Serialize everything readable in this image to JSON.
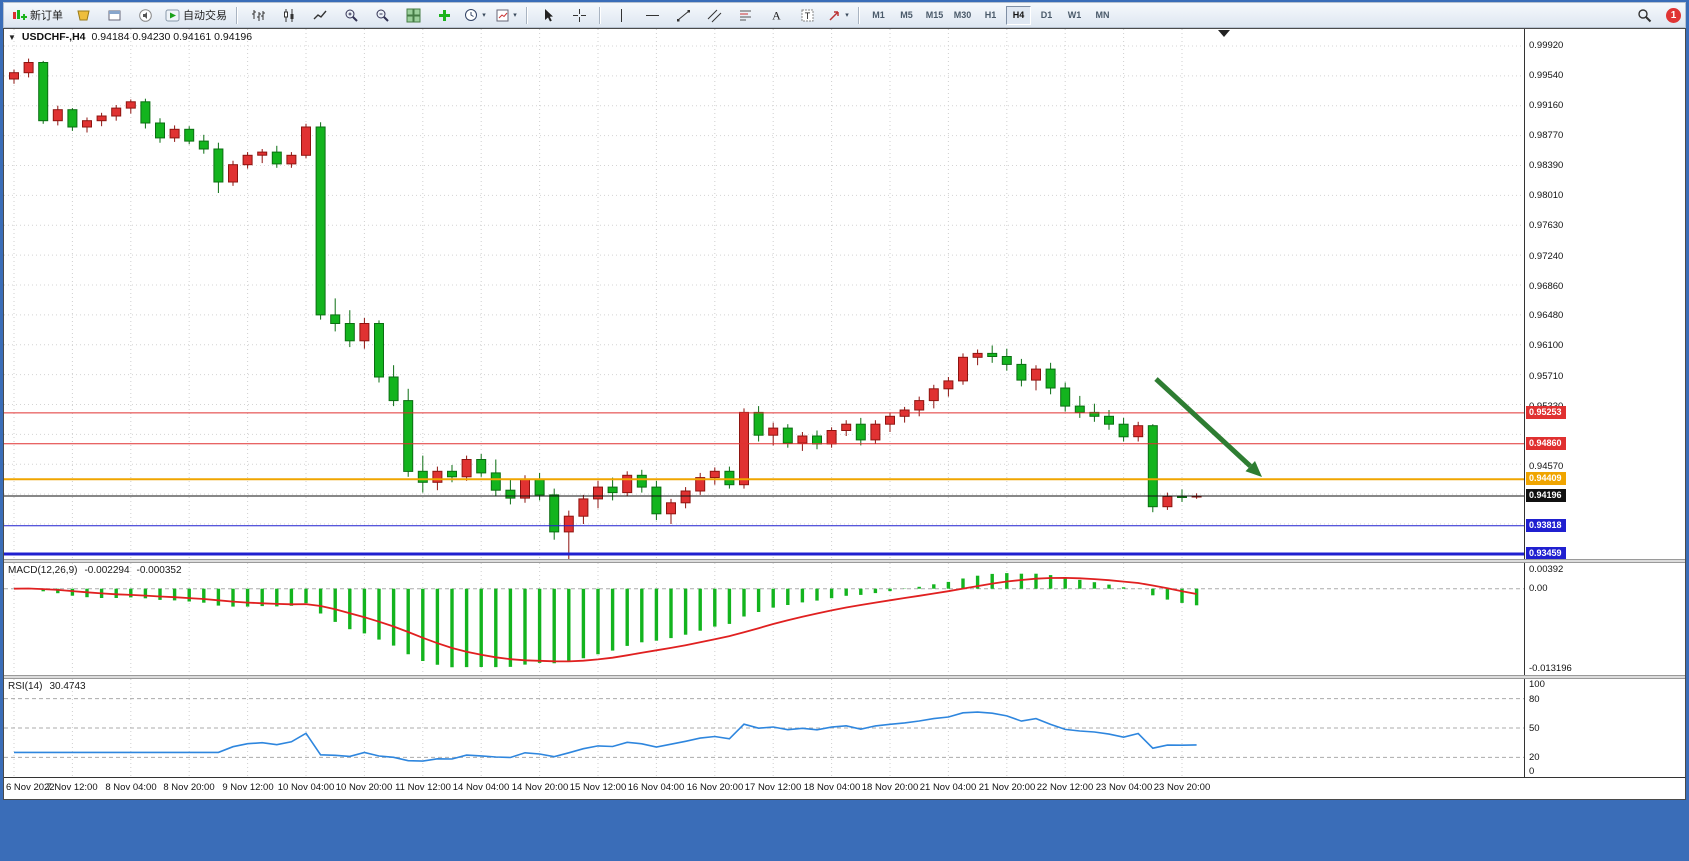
{
  "window": {
    "badge_count": "1",
    "frame_color": "#3a6db8"
  },
  "icons": {
    "caret": "▾",
    "collapse": "▼"
  },
  "toolbar": {
    "new_order_label": "新订单",
    "autotrading_label": "自动交易",
    "timeframes": [
      "M1",
      "M5",
      "M15",
      "M30",
      "H1",
      "H4",
      "D1",
      "W1",
      "MN"
    ],
    "active_timeframe": "H4"
  },
  "chart": {
    "symbol_label": "USDCHF-,H4",
    "ohlc_text": "0.94184 0.94230 0.94161 0.94196",
    "price_axis_labels": [
      "0.99920",
      "0.99540",
      "0.99160",
      "0.98770",
      "0.98390",
      "0.98010",
      "0.97630",
      "0.97240",
      "0.96860",
      "0.96480",
      "0.96100",
      "0.95710",
      "0.95330",
      "0.94570"
    ],
    "hlines": [
      {
        "price": 0.95253,
        "label": "0.95253",
        "color": "#e03030",
        "width": 1
      },
      {
        "price": 0.9486,
        "label": "0.94860",
        "color": "#e03030",
        "width": 1
      },
      {
        "price": 0.94409,
        "label": "0.94409",
        "color": "#f0a500",
        "width": 2
      },
      {
        "price": 0.94196,
        "label": "0.94196",
        "color": "#111111",
        "width": 1
      },
      {
        "price": 0.93818,
        "label": "0.93818",
        "color": "#2020d0",
        "width": 1
      },
      {
        "price": 0.93459,
        "label": "0.93459",
        "color": "#2020d0",
        "width": 3
      }
    ],
    "arrow": {
      "color": "#2e7d32"
    },
    "time_labels": [
      "6 Nov 2022",
      "7 Nov 12:00",
      "8 Nov 04:00",
      "8 Nov 20:00",
      "9 Nov 12:00",
      "10 Nov 04:00",
      "10 Nov 20:00",
      "11 Nov 12:00",
      "14 Nov 04:00",
      "14 Nov 20:00",
      "15 Nov 12:00",
      "16 Nov 04:00",
      "16 Nov 20:00",
      "17 Nov 12:00",
      "18 Nov 04:00",
      "18 Nov 20:00",
      "21 Nov 04:00",
      "21 Nov 20:00",
      "22 Nov 12:00",
      "23 Nov 04:00",
      "23 Nov 20:00"
    ]
  },
  "chart_data": {
    "type": "candlestick",
    "symbol": "USDCHF",
    "period": "H4",
    "current_bar": {
      "open": "0.94184",
      "high": "0.94230",
      "low": "0.94161",
      "close": "0.94196"
    },
    "colors": {
      "bull": "#e03232",
      "bull_border": "#8e1410",
      "bear": "#13b41e",
      "bear_border": "#0a6e12"
    },
    "bars_per_time_label": 4,
    "candles": [
      [
        0.995,
        0.9962,
        0.9944,
        0.9958
      ],
      [
        0.9958,
        0.9976,
        0.9952,
        0.9971
      ],
      [
        0.9971,
        0.9973,
        0.9893,
        0.9897
      ],
      [
        0.9897,
        0.9916,
        0.9891,
        0.9911
      ],
      [
        0.9911,
        0.9913,
        0.9884,
        0.9889
      ],
      [
        0.9889,
        0.9901,
        0.9882,
        0.9897
      ],
      [
        0.9897,
        0.9907,
        0.989,
        0.9903
      ],
      [
        0.9903,
        0.9917,
        0.9897,
        0.9913
      ],
      [
        0.9913,
        0.9924,
        0.9906,
        0.9921
      ],
      [
        0.9921,
        0.9925,
        0.9887,
        0.9894
      ],
      [
        0.9894,
        0.99,
        0.9869,
        0.9875
      ],
      [
        0.9875,
        0.9891,
        0.987,
        0.9886
      ],
      [
        0.9886,
        0.989,
        0.9867,
        0.9871
      ],
      [
        0.9871,
        0.9879,
        0.9855,
        0.9861
      ],
      [
        0.9861,
        0.9869,
        0.9805,
        0.9819
      ],
      [
        0.9819,
        0.9846,
        0.9814,
        0.9841
      ],
      [
        0.9841,
        0.9857,
        0.9836,
        0.9853
      ],
      [
        0.9853,
        0.9861,
        0.9843,
        0.9857
      ],
      [
        0.9857,
        0.9865,
        0.9837,
        0.9842
      ],
      [
        0.9842,
        0.9857,
        0.9837,
        0.9853
      ],
      [
        0.9853,
        0.9893,
        0.9849,
        0.9889
      ],
      [
        0.9889,
        0.9895,
        0.9644,
        0.965
      ],
      [
        0.965,
        0.9671,
        0.9629,
        0.9639
      ],
      [
        0.9639,
        0.9656,
        0.9609,
        0.9617
      ],
      [
        0.9617,
        0.9646,
        0.9607,
        0.9639
      ],
      [
        0.9639,
        0.9643,
        0.9564,
        0.9571
      ],
      [
        0.9571,
        0.9586,
        0.9534,
        0.9541
      ],
      [
        0.9541,
        0.9556,
        0.9444,
        0.9451
      ],
      [
        0.9451,
        0.9471,
        0.9424,
        0.9437
      ],
      [
        0.9437,
        0.9457,
        0.9427,
        0.9451
      ],
      [
        0.9451,
        0.9459,
        0.9437,
        0.9444
      ],
      [
        0.9444,
        0.9471,
        0.9439,
        0.9466
      ],
      [
        0.9466,
        0.9473,
        0.9444,
        0.9449
      ],
      [
        0.9449,
        0.9466,
        0.9419,
        0.9427
      ],
      [
        0.9427,
        0.9441,
        0.9409,
        0.9417
      ],
      [
        0.9417,
        0.9446,
        0.9411,
        0.9441
      ],
      [
        0.9441,
        0.9449,
        0.9414,
        0.9421
      ],
      [
        0.9421,
        0.9429,
        0.9364,
        0.9374
      ],
      [
        0.9374,
        0.9401,
        0.9334,
        0.9394
      ],
      [
        0.9394,
        0.9421,
        0.9384,
        0.9416
      ],
      [
        0.9416,
        0.9439,
        0.9404,
        0.9431
      ],
      [
        0.9431,
        0.9443,
        0.9414,
        0.9424
      ],
      [
        0.9424,
        0.9451,
        0.9419,
        0.9446
      ],
      [
        0.9446,
        0.9453,
        0.9424,
        0.9431
      ],
      [
        0.9431,
        0.9439,
        0.9389,
        0.9397
      ],
      [
        0.9397,
        0.9416,
        0.9384,
        0.9411
      ],
      [
        0.9411,
        0.9431,
        0.9404,
        0.9426
      ],
      [
        0.9426,
        0.9449,
        0.9421,
        0.9443
      ],
      [
        0.9443,
        0.9456,
        0.9434,
        0.9451
      ],
      [
        0.9451,
        0.9457,
        0.9429,
        0.9434
      ],
      [
        0.9434,
        0.9531,
        0.9429,
        0.9526
      ],
      [
        0.9526,
        0.9534,
        0.9489,
        0.9497
      ],
      [
        0.9497,
        0.9513,
        0.9484,
        0.9506
      ],
      [
        0.9506,
        0.9511,
        0.9481,
        0.9487
      ],
      [
        0.9487,
        0.9501,
        0.9477,
        0.9496
      ],
      [
        0.9496,
        0.9503,
        0.9479,
        0.9486
      ],
      [
        0.9486,
        0.9507,
        0.9481,
        0.9503
      ],
      [
        0.9503,
        0.9516,
        0.9496,
        0.9511
      ],
      [
        0.9511,
        0.9519,
        0.9484,
        0.9491
      ],
      [
        0.9491,
        0.9516,
        0.9486,
        0.9511
      ],
      [
        0.9511,
        0.9526,
        0.9501,
        0.9521
      ],
      [
        0.9521,
        0.9533,
        0.9513,
        0.9529
      ],
      [
        0.9529,
        0.9546,
        0.9521,
        0.9541
      ],
      [
        0.9541,
        0.9561,
        0.9531,
        0.9556
      ],
      [
        0.9556,
        0.9571,
        0.9546,
        0.9566
      ],
      [
        0.9566,
        0.9601,
        0.9561,
        0.9596
      ],
      [
        0.9596,
        0.9606,
        0.9586,
        0.9601
      ],
      [
        0.9601,
        0.9611,
        0.9589,
        0.9597
      ],
      [
        0.9597,
        0.9607,
        0.9579,
        0.9587
      ],
      [
        0.9587,
        0.9594,
        0.9559,
        0.9567
      ],
      [
        0.9567,
        0.9586,
        0.9554,
        0.9581
      ],
      [
        0.9581,
        0.9589,
        0.9549,
        0.9557
      ],
      [
        0.9557,
        0.9564,
        0.9527,
        0.9534
      ],
      [
        0.9534,
        0.9547,
        0.9519,
        0.9526
      ],
      [
        0.9526,
        0.9537,
        0.9514,
        0.9521
      ],
      [
        0.9521,
        0.9529,
        0.9504,
        0.9511
      ],
      [
        0.9511,
        0.9519,
        0.9489,
        0.9495
      ],
      [
        0.9495,
        0.9514,
        0.9489,
        0.9509
      ],
      [
        0.9509,
        0.9511,
        0.9399,
        0.9406
      ],
      [
        0.9406,
        0.9424,
        0.9402,
        0.9419
      ],
      [
        0.9419,
        0.9428,
        0.9412,
        0.94184
      ],
      [
        0.94184,
        0.9423,
        0.94161,
        0.94196
      ]
    ],
    "macd": {
      "label": "MACD(12,26,9)",
      "main_value": "-0.002294",
      "signal_value": "-0.000352",
      "axis_labels": [
        "0.00392",
        "0.00",
        "-0.013196"
      ],
      "range": [
        -0.013196,
        0.00392
      ],
      "params": [
        12,
        26,
        9
      ],
      "histogram_color": "#13b41e",
      "signal_color": "#e02020"
    },
    "rsi": {
      "label": "RSI(14)",
      "value": "30.4743",
      "period": 14,
      "axis_labels": [
        "100",
        "80",
        "50",
        "20",
        "0"
      ],
      "levels": [
        80,
        50,
        20
      ],
      "range": [
        0,
        100
      ],
      "line_color": "#2e86de"
    }
  }
}
